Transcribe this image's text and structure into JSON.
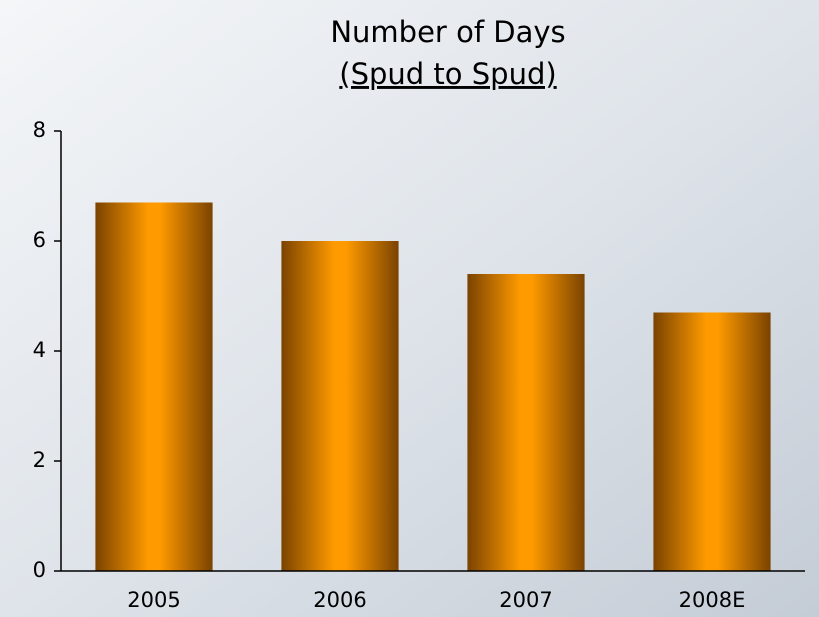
{
  "chart_data": {
    "type": "bar",
    "title": "Number of Days",
    "subtitle": "(Spud to Spud)",
    "categories": [
      "2005",
      "2006",
      "2007",
      "2008E"
    ],
    "values": [
      6.7,
      6.0,
      5.4,
      4.7
    ],
    "color": "#ff9900",
    "ylim": [
      0,
      8
    ],
    "yticks": [
      0,
      2,
      4,
      6,
      8
    ],
    "grid": false
  }
}
